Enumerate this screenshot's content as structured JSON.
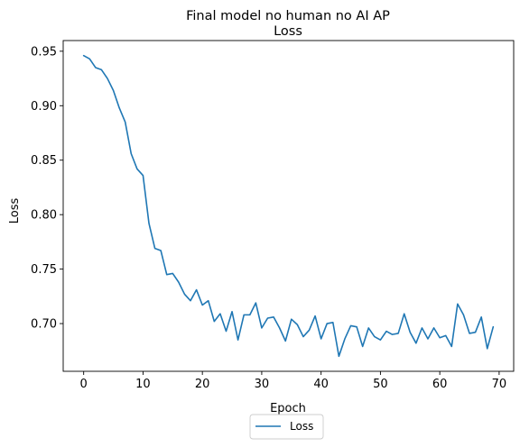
{
  "chart_data": {
    "type": "line",
    "title": "Final model no human no AI AP",
    "subtitle": "Loss",
    "xlabel": "Epoch",
    "ylabel": "Loss",
    "xlim": [
      -3.45,
      72.45
    ],
    "ylim": [
      0.6562,
      0.9598
    ],
    "xticks": [
      0,
      10,
      20,
      30,
      40,
      50,
      60,
      70
    ],
    "yticks": [
      0.7,
      0.75,
      0.8,
      0.85,
      0.9,
      0.95
    ],
    "ytick_labels": [
      "0.70",
      "0.75",
      "0.80",
      "0.85",
      "0.90",
      "0.95"
    ],
    "grid": false,
    "legend": {
      "placement": "bottom-center",
      "entries": [
        "Loss"
      ]
    },
    "series": [
      {
        "name": "Loss",
        "color": "#1f77b4",
        "x": [
          0,
          1,
          2,
          3,
          4,
          5,
          6,
          7,
          8,
          9,
          10,
          11,
          12,
          13,
          14,
          15,
          16,
          17,
          18,
          19,
          20,
          21,
          22,
          23,
          24,
          25,
          26,
          27,
          28,
          29,
          30,
          31,
          32,
          33,
          34,
          35,
          36,
          37,
          38,
          39,
          40,
          41,
          42,
          43,
          44,
          45,
          46,
          47,
          48,
          49,
          50,
          51,
          52,
          53,
          54,
          55,
          56,
          57,
          58,
          59,
          60,
          61,
          62,
          63,
          64,
          65,
          66,
          67,
          68,
          69
        ],
        "values": [
          0.946,
          0.943,
          0.935,
          0.933,
          0.925,
          0.914,
          0.898,
          0.885,
          0.856,
          0.842,
          0.836,
          0.792,
          0.769,
          0.767,
          0.745,
          0.746,
          0.738,
          0.727,
          0.721,
          0.731,
          0.717,
          0.721,
          0.702,
          0.709,
          0.693,
          0.711,
          0.685,
          0.708,
          0.708,
          0.719,
          0.696,
          0.705,
          0.706,
          0.696,
          0.684,
          0.704,
          0.699,
          0.688,
          0.694,
          0.707,
          0.686,
          0.7,
          0.701,
          0.67,
          0.686,
          0.698,
          0.697,
          0.679,
          0.696,
          0.688,
          0.685,
          0.693,
          0.69,
          0.691,
          0.709,
          0.692,
          0.682,
          0.696,
          0.686,
          0.696,
          0.687,
          0.689,
          0.679,
          0.718,
          0.708,
          0.691,
          0.692,
          0.706,
          0.677,
          0.697
        ]
      }
    ]
  }
}
